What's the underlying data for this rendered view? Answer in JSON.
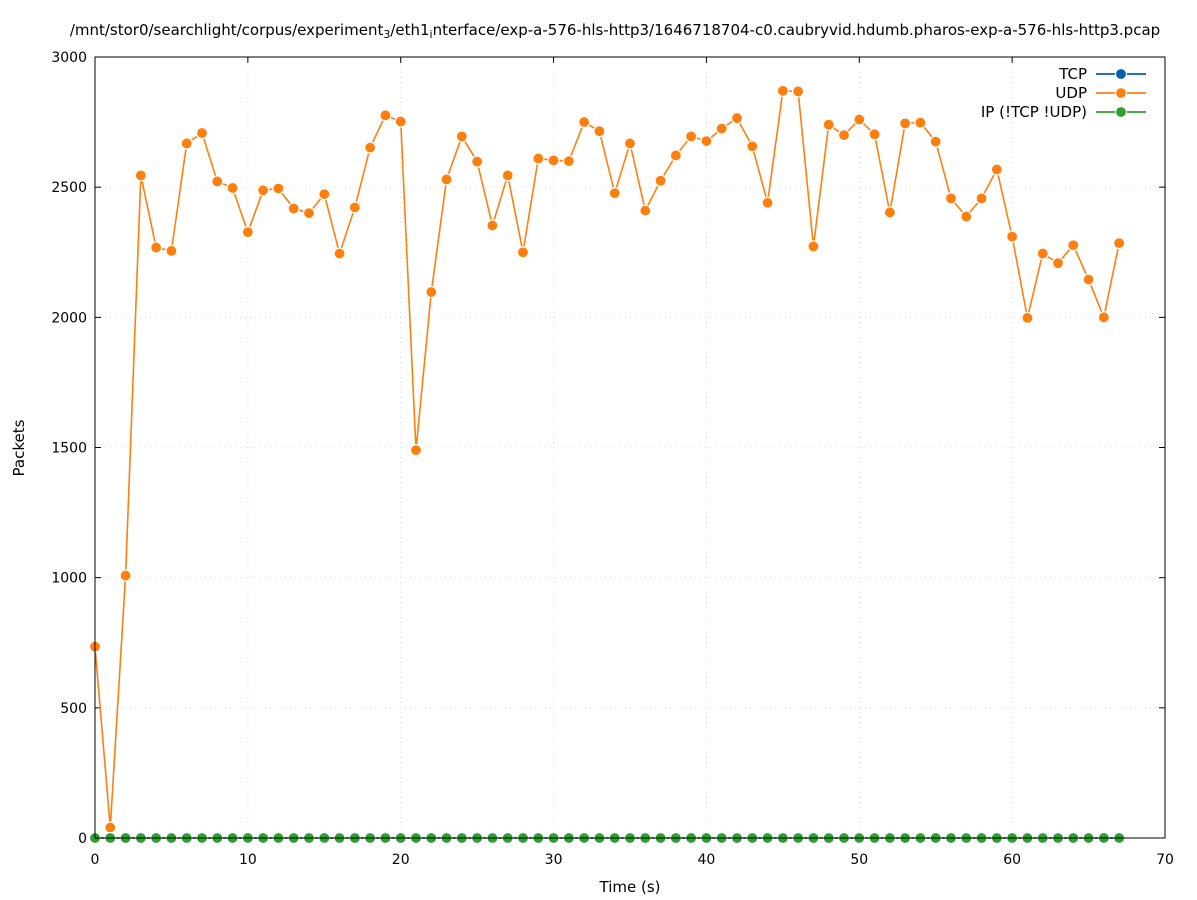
{
  "chart_data": {
    "type": "line",
    "title_parts": [
      {
        "text": "/mnt/stor0/searchlight/corpus/experiment",
        "sub": false
      },
      {
        "text": "3",
        "sub": true
      },
      {
        "text": "/eth1",
        "sub": false
      },
      {
        "text": "i",
        "sub": true
      },
      {
        "text": "nterface/exp-a-576-hls-http3/1646718704-c0.caubryvid.hdumb.pharos-exp-a-576-hls-http3.pcap",
        "sub": false
      }
    ],
    "xlabel": "Time (s)",
    "ylabel": "Packets",
    "xlim": [
      0,
      70
    ],
    "ylim": [
      0,
      3000
    ],
    "x_ticks": [
      0,
      10,
      20,
      30,
      40,
      50,
      60,
      70
    ],
    "y_ticks": [
      0,
      500,
      1000,
      1500,
      2000,
      2500,
      3000
    ],
    "grid": true,
    "legend_position": "top-right",
    "x": [
      0,
      1,
      2,
      3,
      4,
      5,
      6,
      7,
      8,
      9,
      10,
      11,
      12,
      13,
      14,
      15,
      16,
      17,
      18,
      19,
      20,
      21,
      22,
      23,
      24,
      25,
      26,
      27,
      28,
      29,
      30,
      31,
      32,
      33,
      34,
      35,
      36,
      37,
      38,
      39,
      40,
      41,
      42,
      43,
      44,
      45,
      46,
      47,
      48,
      49,
      50,
      51,
      52,
      53,
      54,
      55,
      56,
      57,
      58,
      59,
      60,
      61,
      62,
      63,
      64,
      65,
      66,
      67
    ],
    "series": [
      {
        "name": "TCP",
        "color": "#0060ad",
        "values": [
          0,
          0,
          0,
          0,
          0,
          0,
          0,
          0,
          0,
          0,
          0,
          0,
          0,
          0,
          0,
          0,
          0,
          0,
          0,
          0,
          0,
          0,
          0,
          0,
          0,
          0,
          0,
          0,
          0,
          0,
          0,
          0,
          0,
          0,
          0,
          0,
          0,
          0,
          0,
          0,
          0,
          0,
          0,
          0,
          0,
          0,
          0,
          0,
          0,
          0,
          0,
          0,
          0,
          0,
          0,
          0,
          0,
          0,
          0,
          0,
          0,
          0,
          0,
          0,
          0,
          0,
          0,
          0
        ]
      },
      {
        "name": "UDP",
        "color": "#ff7f0e",
        "values": [
          735,
          40,
          1008,
          2545,
          2268,
          2255,
          2668,
          2708,
          2522,
          2497,
          2327,
          2488,
          2495,
          2418,
          2400,
          2473,
          2245,
          2422,
          2652,
          2776,
          2752,
          1490,
          2097,
          2530,
          2695,
          2598,
          2353,
          2545,
          2250,
          2610,
          2603,
          2600,
          2750,
          2715,
          2477,
          2668,
          2410,
          2525,
          2622,
          2695,
          2677,
          2725,
          2765,
          2657,
          2440,
          2870,
          2868,
          2272,
          2740,
          2700,
          2760,
          2703,
          2403,
          2745,
          2748,
          2675,
          2457,
          2387,
          2457,
          2568,
          2310,
          1998,
          2245,
          2208,
          2277,
          2145,
          2000,
          2285
        ]
      },
      {
        "name": "IP (!TCP  !UDP)",
        "color": "#2ca02c",
        "values": [
          0,
          0,
          0,
          0,
          0,
          0,
          0,
          0,
          0,
          0,
          0,
          0,
          0,
          0,
          0,
          0,
          0,
          0,
          0,
          0,
          0,
          0,
          0,
          0,
          0,
          0,
          0,
          0,
          0,
          0,
          0,
          0,
          0,
          0,
          0,
          0,
          0,
          0,
          0,
          0,
          0,
          0,
          0,
          0,
          0,
          0,
          0,
          0,
          0,
          0,
          0,
          0,
          0,
          0,
          0,
          0,
          0,
          0,
          0,
          0,
          0,
          0,
          0,
          0,
          0,
          0,
          0,
          0
        ]
      }
    ]
  }
}
